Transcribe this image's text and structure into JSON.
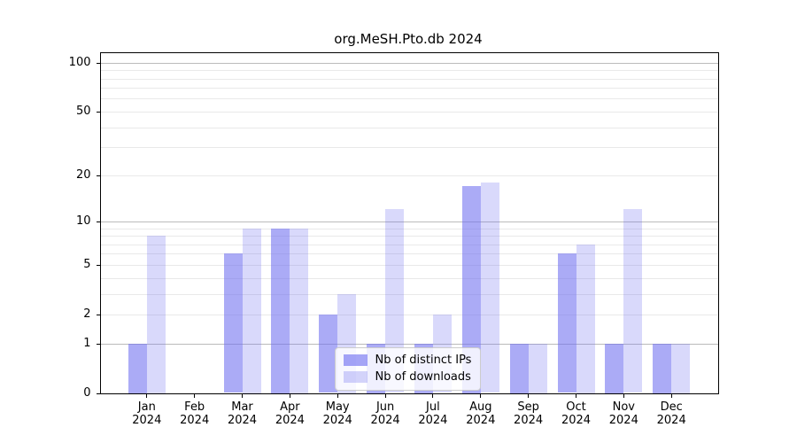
{
  "title": "org.MeSH.Pto.db 2024",
  "chart_data": {
    "type": "bar",
    "categories": [
      "Jan",
      "Feb",
      "Mar",
      "Apr",
      "May",
      "Jun",
      "Jul",
      "Aug",
      "Sep",
      "Oct",
      "Nov",
      "Dec"
    ],
    "year_label": "2024",
    "series": [
      {
        "name": "Nb of distinct IPs",
        "color": "#6e6ef0",
        "alpha": 0.58,
        "values": [
          1,
          0,
          6,
          9,
          2,
          1,
          1,
          17,
          1,
          6,
          1,
          1
        ]
      },
      {
        "name": "Nb of downloads",
        "color": "#6e6ef0",
        "alpha": 0.26,
        "values": [
          8,
          0,
          9,
          9,
          3,
          12,
          2,
          18,
          1,
          7,
          12,
          1
        ]
      }
    ],
    "yscale": "log1p",
    "ylim": [
      0,
      115
    ],
    "yticks": [
      0,
      1,
      2,
      5,
      10,
      20,
      50,
      100
    ],
    "major_gridlines": [
      1,
      10,
      100
    ],
    "minor_gridlines": [
      2,
      3,
      4,
      5,
      6,
      7,
      8,
      9,
      20,
      30,
      40,
      50,
      60,
      70,
      80,
      90
    ],
    "grid": true,
    "legend_position": "lower center",
    "axis_color": "#000000",
    "grid_color_major": "#bbbbbb",
    "grid_color_minor": "#e9e9e9"
  }
}
